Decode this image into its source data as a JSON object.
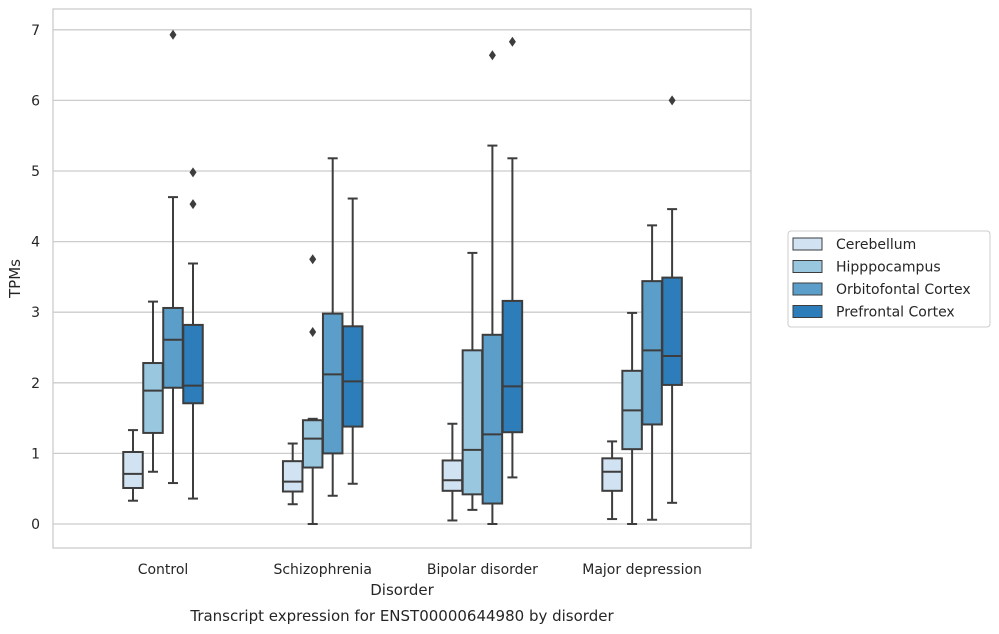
{
  "chart_data": {
    "type": "box",
    "title": "Transcript expression for ENST00000644980 by disorder",
    "xlabel": "Disorder",
    "ylabel": "TPMs",
    "ylim": [
      -0.33,
      7.3
    ],
    "yticks": [
      0,
      1,
      2,
      3,
      4,
      5,
      6,
      7
    ],
    "grid": true,
    "legend_position": "right",
    "categories": [
      "Control",
      "Schizophrenia",
      "Bipolar disorder",
      "Major depression"
    ],
    "series": [
      {
        "name": "Cerebellum",
        "color": "#d1e2f2",
        "boxes": [
          {
            "whislo": 0.33,
            "q1": 0.51,
            "med": 0.71,
            "q3": 1.02,
            "whishi": 1.33,
            "fliers": []
          },
          {
            "whislo": 0.28,
            "q1": 0.46,
            "med": 0.6,
            "q3": 0.89,
            "whishi": 1.14,
            "fliers": []
          },
          {
            "whislo": 0.05,
            "q1": 0.47,
            "med": 0.62,
            "q3": 0.9,
            "whishi": 1.42,
            "fliers": []
          },
          {
            "whislo": 0.07,
            "q1": 0.47,
            "med": 0.74,
            "q3": 0.93,
            "whishi": 1.17,
            "fliers": []
          }
        ]
      },
      {
        "name": "Hipppocampus",
        "color": "#9ac7e0",
        "boxes": [
          {
            "whislo": 0.74,
            "q1": 1.29,
            "med": 1.89,
            "q3": 2.28,
            "whishi": 3.15,
            "fliers": []
          },
          {
            "whislo": 0.0,
            "q1": 0.8,
            "med": 1.21,
            "q3": 1.47,
            "whishi": 1.49,
            "fliers": [
              2.72,
              3.75
            ]
          },
          {
            "whislo": 0.2,
            "q1": 0.42,
            "med": 1.05,
            "q3": 2.46,
            "whishi": 3.84,
            "fliers": []
          },
          {
            "whislo": 0.0,
            "q1": 1.06,
            "med": 1.61,
            "q3": 2.17,
            "whishi": 2.99,
            "fliers": []
          }
        ]
      },
      {
        "name": "Orbitofontal Cortex",
        "color": "#5b9ec9",
        "boxes": [
          {
            "whislo": 0.58,
            "q1": 1.93,
            "med": 2.61,
            "q3": 3.06,
            "whishi": 4.63,
            "fliers": [
              6.93
            ]
          },
          {
            "whislo": 0.4,
            "q1": 1.0,
            "med": 2.12,
            "q3": 2.98,
            "whishi": 5.18,
            "fliers": []
          },
          {
            "whislo": 0.0,
            "q1": 0.29,
            "med": 1.27,
            "q3": 2.68,
            "whishi": 5.36,
            "fliers": [
              6.64
            ]
          },
          {
            "whislo": 0.06,
            "q1": 1.41,
            "med": 2.46,
            "q3": 3.44,
            "whishi": 4.23,
            "fliers": []
          }
        ]
      },
      {
        "name": "Prefrontal Cortex",
        "color": "#2d7dbb",
        "boxes": [
          {
            "whislo": 0.36,
            "q1": 1.71,
            "med": 1.96,
            "q3": 2.82,
            "whishi": 3.69,
            "fliers": [
              4.53,
              4.98
            ]
          },
          {
            "whislo": 0.57,
            "q1": 1.38,
            "med": 2.02,
            "q3": 2.8,
            "whishi": 4.61,
            "fliers": []
          },
          {
            "whislo": 0.66,
            "q1": 1.3,
            "med": 1.95,
            "q3": 3.16,
            "whishi": 5.18,
            "fliers": [
              6.83
            ]
          },
          {
            "whislo": 0.3,
            "q1": 1.97,
            "med": 2.38,
            "q3": 3.49,
            "whishi": 4.46,
            "fliers": [
              6.0
            ]
          }
        ]
      }
    ]
  }
}
